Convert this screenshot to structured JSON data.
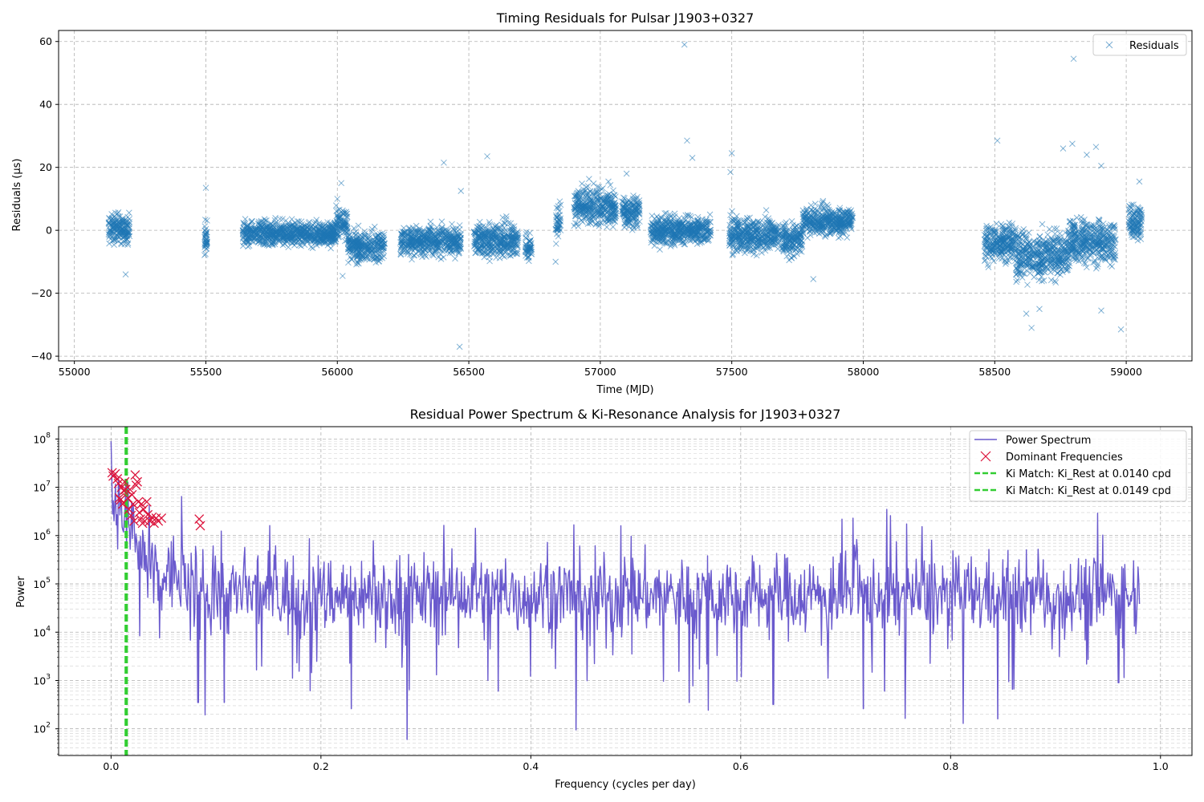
{
  "chart_data": [
    {
      "type": "scatter",
      "title": "Timing Residuals for Pulsar J1903+0327",
      "xlabel": "Time (MJD)",
      "ylabel": "Residuals (µs)",
      "xlim": [
        54940,
        59250
      ],
      "ylim": [
        -41.5,
        63.5
      ],
      "xticks": [
        55000,
        55500,
        56000,
        56500,
        57000,
        57500,
        58000,
        58500,
        59000
      ],
      "yticks": [
        -40,
        -20,
        0,
        20,
        40,
        60
      ],
      "ytick_labels": [
        "−40",
        "−20",
        "0",
        "20",
        "40",
        "60"
      ],
      "grid": true,
      "legend_position": "top-right",
      "marker_color": "#1f77b4",
      "series": [
        {
          "name": "Residuals",
          "marker": "x",
          "observing_segments": [
            {
              "start": 55130,
              "end": 55210,
              "center": 0.5,
              "spread": 3.0
            },
            {
              "start": 55495,
              "end": 55505,
              "center": -3.0,
              "spread": 4.0
            },
            {
              "start": 55640,
              "end": 55995,
              "center": -1.0,
              "spread": 2.5
            },
            {
              "start": 55995,
              "end": 56040,
              "center": 2.0,
              "spread": 3.5
            },
            {
              "start": 56040,
              "end": 56180,
              "center": -5.0,
              "spread": 3.0
            },
            {
              "start": 56240,
              "end": 56470,
              "center": -3.5,
              "spread": 3.0
            },
            {
              "start": 56520,
              "end": 56690,
              "center": -3.0,
              "spread": 3.5
            },
            {
              "start": 56715,
              "end": 56740,
              "center": -5.5,
              "spread": 3.0
            },
            {
              "start": 56830,
              "end": 56850,
              "center": 2.5,
              "spread": 4.0
            },
            {
              "start": 56900,
              "end": 57060,
              "center": 7.5,
              "spread": 4.0
            },
            {
              "start": 57080,
              "end": 57150,
              "center": 6.0,
              "spread": 3.0
            },
            {
              "start": 57190,
              "end": 57420,
              "center": 0.0,
              "spread": 3.0
            },
            {
              "start": 57490,
              "end": 57680,
              "center": -1.5,
              "spread": 3.5
            },
            {
              "start": 57690,
              "end": 57770,
              "center": -3.0,
              "spread": 3.5
            },
            {
              "start": 57770,
              "end": 57960,
              "center": 3.0,
              "spread": 3.0
            },
            {
              "start": 58460,
              "end": 58580,
              "center": -4.0,
              "spread": 4.0
            },
            {
              "start": 58580,
              "end": 58780,
              "center": -8.0,
              "spread": 5.0
            },
            {
              "start": 58780,
              "end": 58960,
              "center": -3.5,
              "spread": 4.5
            },
            {
              "start": 59010,
              "end": 59060,
              "center": 3.0,
              "spread": 3.5
            }
          ],
          "outliers": [
            [
              55195,
              -14
            ],
            [
              55500,
              13.5
            ],
            [
              56015,
              15
            ],
            [
              56020,
              -14.5
            ],
            [
              56405,
              21.5
            ],
            [
              56465,
              -37
            ],
            [
              56470,
              12.5
            ],
            [
              56570,
              23.5
            ],
            [
              57320,
              59
            ],
            [
              57330,
              28.5
            ],
            [
              57350,
              23
            ],
            [
              57500,
              24.5
            ],
            [
              57495,
              18.5
            ],
            [
              57810,
              -15.5
            ],
            [
              58510,
              28.5
            ],
            [
              58640,
              -31
            ],
            [
              58620,
              -26.5
            ],
            [
              58670,
              -25
            ],
            [
              58760,
              26
            ],
            [
              58795,
              27.5
            ],
            [
              58800,
              54.5
            ],
            [
              58850,
              24
            ],
            [
              58885,
              26.5
            ],
            [
              58905,
              20.5
            ],
            [
              58905,
              -25.5
            ],
            [
              58980,
              -31.5
            ],
            [
              59050,
              15.5
            ],
            [
              56000,
              10
            ],
            [
              56830,
              -10
            ],
            [
              57100,
              18
            ]
          ]
        }
      ]
    },
    {
      "type": "line",
      "title": "Residual Power Spectrum & Ki-Resonance Analysis for J1903+0327",
      "xlabel": "Frequency (cycles per day)",
      "ylabel": "Power",
      "xscale": "linear",
      "yscale": "log",
      "xlim": [
        -0.05,
        1.03
      ],
      "ylim": [
        28,
        180000000
      ],
      "xticks": [
        0.0,
        0.2,
        0.4,
        0.6,
        0.8,
        1.0
      ],
      "xtick_labels": [
        "0.0",
        "0.2",
        "0.4",
        "0.6",
        "0.8",
        "1.0"
      ],
      "ytick_exponents": [
        "2",
        "3",
        "4",
        "5",
        "6",
        "7",
        "8"
      ],
      "ytick_base": "10",
      "grid": true,
      "legend_position": "top-right",
      "series": [
        {
          "name": "Power Spectrum",
          "color": "#6a5acd",
          "f_range": [
            0.0,
            0.98
          ],
          "typical_power": 60000,
          "peak_at_zero": 90000000,
          "deep_dips": [
            [
              0.083,
              350
            ],
            [
              0.108,
              350
            ],
            [
              0.229,
              260
            ],
            [
              0.282,
              60
            ],
            [
              0.369,
              600
            ],
            [
              0.443,
              95
            ],
            [
              0.551,
              350
            ],
            [
              0.631,
              320
            ],
            [
              0.717,
              260
            ],
            [
              0.737,
              600
            ],
            [
              0.845,
              160
            ],
            [
              0.96,
              900
            ]
          ]
        },
        {
          "name": "Dominant Frequencies",
          "color": "#dc143c",
          "marker": "x",
          "points": [
            [
              0.001,
              20000000
            ],
            [
              0.002,
              17000000
            ],
            [
              0.004,
              19000000
            ],
            [
              0.006,
              15000000
            ],
            [
              0.007,
              12000000
            ],
            [
              0.008,
              6000000
            ],
            [
              0.009,
              5500000
            ],
            [
              0.01,
              10000000
            ],
            [
              0.011,
              4500000
            ],
            [
              0.012,
              8500000
            ],
            [
              0.013,
              13000000
            ],
            [
              0.014,
              9000000
            ],
            [
              0.016,
              6000000
            ],
            [
              0.017,
              3500000
            ],
            [
              0.018,
              9000000
            ],
            [
              0.019,
              2600000
            ],
            [
              0.02,
              7000000
            ],
            [
              0.021,
              4500000
            ],
            [
              0.022,
              2000000
            ],
            [
              0.023,
              18000000
            ],
            [
              0.024,
              11000000
            ],
            [
              0.025,
              13000000
            ],
            [
              0.026,
              5000000
            ],
            [
              0.027,
              3000000
            ],
            [
              0.028,
              2200000
            ],
            [
              0.029,
              4500000
            ],
            [
              0.03,
              1800000
            ],
            [
              0.031,
              3500000
            ],
            [
              0.032,
              2000000
            ],
            [
              0.034,
              5000000
            ],
            [
              0.035,
              2700000
            ],
            [
              0.037,
              2000000
            ],
            [
              0.039,
              2400000
            ],
            [
              0.041,
              1800000
            ],
            [
              0.043,
              2300000
            ],
            [
              0.045,
              2000000
            ],
            [
              0.048,
              2300000
            ],
            [
              0.084,
              2200000
            ],
            [
              0.085,
              1600000
            ]
          ]
        },
        {
          "name": "Ki Match: Ki_Rest at 0.0140 cpd",
          "color": "#32cd32",
          "style": "dashed",
          "x": 0.014
        },
        {
          "name": "Ki Match: Ki_Rest at 0.0149 cpd",
          "color": "#32cd32",
          "style": "dashed",
          "x": 0.0149
        }
      ]
    }
  ]
}
